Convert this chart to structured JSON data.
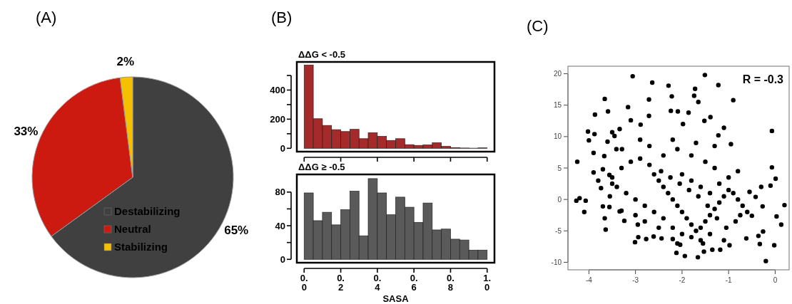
{
  "chart_data": [
    {
      "type": "pie",
      "annotations": [
        "(A)"
      ],
      "categories": [
        "Destabilizing",
        "Neutral",
        "Stabilizing"
      ],
      "values": [
        65,
        33,
        2
      ],
      "value_labels": [
        "65%",
        "33%",
        "2%"
      ],
      "colors": [
        "#404040",
        "#cc1a10",
        "#f5c000"
      ],
      "legend": "bottom"
    },
    {
      "type": "histogram",
      "title": "ΔΔG < -0.5",
      "annotations": [
        "(B)"
      ],
      "bins": [
        0,
        0.05,
        0.1,
        0.15,
        0.2,
        0.25,
        0.3,
        0.35,
        0.4,
        0.45,
        0.5,
        0.55,
        0.6,
        0.65,
        0.7,
        0.75,
        0.8,
        0.85,
        0.9,
        0.95,
        1
      ],
      "values": [
        572,
        203,
        157,
        128,
        115,
        130,
        66,
        107,
        82,
        54,
        66,
        25,
        20,
        23,
        38,
        13,
        5,
        2,
        1,
        3
      ],
      "color": "#a52a2a",
      "xlim": [
        -0.04,
        1.04
      ],
      "xticks": [
        0,
        0.2,
        0.4,
        0.6,
        0.8,
        1
      ],
      "ylim": [
        -23,
        593
      ],
      "yticks": [
        0,
        {
          "value": 100,
          "label": null
        },
        200,
        {
          "value": 300,
          "label": null
        },
        400,
        {
          "value": 500,
          "label": null
        }
      ],
      "tick_labels": "y"
    },
    {
      "type": "histogram",
      "title": "ΔΔG ≥ -0.5",
      "xlabel": "SASA",
      "bins": [
        0,
        0.05,
        0.1,
        0.15,
        0.2,
        0.25,
        0.3,
        0.35,
        0.4,
        0.45,
        0.5,
        0.55,
        0.6,
        0.65,
        0.7,
        0.75,
        0.8,
        0.85,
        0.9,
        0.95,
        1
      ],
      "values": [
        79,
        46,
        56,
        41,
        59,
        81,
        28,
        96,
        79,
        53,
        74,
        62,
        44,
        67,
        35,
        36,
        24,
        23,
        11,
        11
      ],
      "color": "#5a5a5a",
      "xlim": [
        -0.04,
        1.04
      ],
      "xticks": [
        {
          "value": 0,
          "label": "0.0"
        },
        {
          "value": 0.2,
          "label": "0.2"
        },
        {
          "value": 0.4,
          "label": "0.4"
        },
        {
          "value": 0.6,
          "label": "0.6"
        },
        {
          "value": 0.8,
          "label": "0.8"
        },
        {
          "value": 1,
          "label": "1.0"
        }
      ],
      "ylim": [
        -4,
        101
      ],
      "yticks": [
        0,
        {
          "value": 20,
          "label": null
        },
        40,
        {
          "value": 60,
          "label": null
        },
        80
      ]
    },
    {
      "type": "scatter",
      "annotations": [
        "(C)",
        "R = -0.3"
      ],
      "marker": "circle",
      "xlim": [
        -4.45,
        0.3
      ],
      "ylim": [
        -11.2,
        21.2
      ],
      "xticks": [
        -4,
        -3,
        -2,
        -1,
        0
      ],
      "yticks": [
        -10,
        -5,
        0,
        5,
        10,
        15,
        20
      ],
      "series": [
        {
          "color": "#000000",
          "x": [
            -4.25,
            -4.27,
            -4.2,
            -4.1,
            -4.07,
            -4.02,
            -4.0,
            -3.87,
            -3.88,
            -3.9,
            -3.9,
            -3.8,
            -3.66,
            -3.59,
            -3.67,
            -3.64,
            -3.66,
            -3.7,
            -3.56,
            -3.6,
            -3.5,
            -3.45,
            -3.74,
            -3.56,
            -3.5,
            -3.41,
            -3.34,
            -3.29,
            -3.34,
            -3.24,
            -3.16,
            -3.1,
            -3.06,
            -3.01,
            -2.94,
            -2.89,
            -2.77,
            -2.71,
            -2.64,
            -2.71,
            -2.29,
            -2.22,
            -2.24,
            -2.09,
            -1.98,
            -1.86,
            -1.72,
            -1.74,
            -1.65,
            -1.51,
            -1.52,
            -1.39,
            -1.22,
            -0.9,
            -1.22,
            -1.1,
            -0.95,
            -0.07,
            -0.07,
            0.01,
            0.2,
            0.13,
            0.03,
            -0.02,
            -0.2,
            -0.36,
            -0.33,
            -0.26,
            -0.3,
            -0.1,
            -0.27,
            -0.42,
            -0.5,
            -0.62,
            -1.66,
            -1.94,
            -2.12,
            -1.53,
            -1.35,
            -1.18,
            -0.98,
            -2.04,
            -2.2,
            -2.44,
            -2.61,
            -2.6,
            -2.5,
            -2.4,
            -2.3,
            -2.2,
            -2.1,
            -2.0,
            -1.9,
            -1.8,
            -1.7,
            -1.6,
            -1.5,
            -1.4,
            -1.3,
            -1.2,
            -1.1,
            -1.0,
            -0.9,
            -0.8,
            -0.7,
            -0.75,
            -0.85,
            -1.05,
            -1.25,
            -1.45,
            -1.65,
            -1.85,
            -2.05,
            -2.25,
            -2.45,
            -2.7,
            -2.9,
            -3.1,
            -3.3,
            -3.4,
            -3.2,
            -3.0,
            -2.8,
            -2.6,
            -2.4,
            -2.2,
            -2.0,
            -1.8,
            -1.6,
            -1.4,
            -2.0,
            -1.8,
            -1.6,
            -1.4,
            -1.2,
            -1.0,
            -0.8,
            -1.3,
            -1.5,
            -1.8,
            -2.1,
            -2.4,
            -2.7,
            -2.9,
            -2.2,
            -1.7,
            -1.3,
            -3.5,
            -3.7,
            -3.55,
            -3.3,
            -3.0,
            -2.8,
            -2.95,
            -2.5,
            -0.6,
            -0.55,
            -1.1,
            -1.55,
            -2.1
          ],
          "values": [
            6.0,
            -0.2,
            0.2,
            -2.0,
            -0.2,
            10.8,
            9.4,
            13.5,
            10.4,
            7.4,
            4.3,
            3.0,
            16.0,
            14.0,
            6.9,
            -4.8,
            -3.0,
            -1.1,
            -1.2,
            9.2,
            10.7,
            10.1,
            1.8,
            3.9,
            2.5,
            8.0,
            11.2,
            8.0,
            -1.9,
            -3.4,
            14.7,
            12.6,
            19.6,
            -6.8,
            -6.0,
            11.9,
            -6.3,
            15.9,
            18.6,
            13.3,
            18.1,
            16.4,
            14.1,
            14.0,
            12.0,
            13.8,
            17.6,
            16.5,
            15.5,
            19.8,
            12.5,
            13.1,
            18.2,
            15.8,
            10.2,
            11.4,
            8.8,
            10.9,
            5.1,
            3.3,
            -0.9,
            -4.0,
            -2.7,
            -7.3,
            -9.8,
            -5.8,
            -7.1,
            -5.1,
            2.0,
            2.2,
            -1.1,
            0.4,
            -2.6,
            -6.2,
            -9.2,
            -9.0,
            -8.5,
            -8.3,
            -8.0,
            -8.0,
            -7.3,
            -7.2,
            -6.3,
            -6.2,
            -5.9,
            4.0,
            3.0,
            2.0,
            1.0,
            0.0,
            -1.0,
            -2.0,
            -3.0,
            -4.0,
            -5.0,
            -4.5,
            -3.5,
            -2.5,
            -1.5,
            -0.5,
            0.5,
            1.5,
            1.0,
            0.0,
            -1.0,
            -2.5,
            -3.5,
            -4.5,
            -3.0,
            -1.0,
            0.5,
            1.5,
            2.5,
            3.5,
            4.5,
            5.5,
            6.5,
            6.0,
            5.0,
            2.0,
            1.0,
            0.0,
            -1.0,
            -2.0,
            -3.0,
            -4.5,
            -5.5,
            -6.0,
            -6.5,
            -5.5,
            4.0,
            3.0,
            2.0,
            1.0,
            2.5,
            3.5,
            4.5,
            5.0,
            6.0,
            7.0,
            8.0,
            7.0,
            8.5,
            9.5,
            9.5,
            9.0,
            8.5,
            3.5,
            4.8,
            0.5,
            -1.8,
            -2.5,
            -3.5,
            -4.0,
            -4.5,
            -2.0,
            1.2,
            -6.5,
            -7.0,
            -7.0
          ]
        }
      ]
    }
  ]
}
